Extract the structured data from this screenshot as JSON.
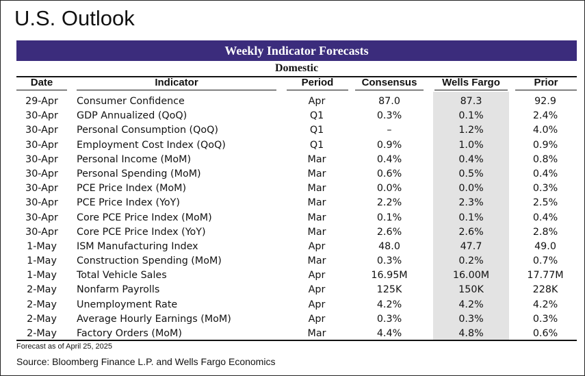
{
  "page_title": "U.S. Outlook",
  "table": {
    "banner": "Weekly Indicator Forecasts",
    "section": "Domestic",
    "headers": {
      "date": "Date",
      "indicator": "Indicator",
      "period": "Period",
      "consensus": "Consensus",
      "wells_fargo": "Wells Fargo",
      "prior": "Prior"
    },
    "rows": [
      {
        "date": "29-Apr",
        "indicator": "Consumer Confidence",
        "period": "Apr",
        "consensus": "87.0",
        "wells_fargo": "87.3",
        "prior": "92.9"
      },
      {
        "date": "30-Apr",
        "indicator": "GDP Annualized (QoQ)",
        "period": "Q1",
        "consensus": "0.3%",
        "wells_fargo": "0.1%",
        "prior": "2.4%"
      },
      {
        "date": "30-Apr",
        "indicator": "Personal Consumption (QoQ)",
        "period": "Q1",
        "consensus": "–",
        "wells_fargo": "1.2%",
        "prior": "4.0%"
      },
      {
        "date": "30-Apr",
        "indicator": "Employment Cost Index (QoQ)",
        "period": "Q1",
        "consensus": "0.9%",
        "wells_fargo": "1.0%",
        "prior": "0.9%"
      },
      {
        "date": "30-Apr",
        "indicator": "Personal Income (MoM)",
        "period": "Mar",
        "consensus": "0.4%",
        "wells_fargo": "0.4%",
        "prior": "0.8%"
      },
      {
        "date": "30-Apr",
        "indicator": "Personal Spending (MoM)",
        "period": "Mar",
        "consensus": "0.6%",
        "wells_fargo": "0.5%",
        "prior": "0.4%"
      },
      {
        "date": "30-Apr",
        "indicator": "PCE Price Index (MoM)",
        "period": "Mar",
        "consensus": "0.0%",
        "wells_fargo": "0.0%",
        "prior": "0.3%"
      },
      {
        "date": "30-Apr",
        "indicator": "PCE Price Index (YoY)",
        "period": "Mar",
        "consensus": "2.2%",
        "wells_fargo": "2.3%",
        "prior": "2.5%"
      },
      {
        "date": "30-Apr",
        "indicator": "Core PCE Price Index (MoM)",
        "period": "Mar",
        "consensus": "0.1%",
        "wells_fargo": "0.1%",
        "prior": "0.4%"
      },
      {
        "date": "30-Apr",
        "indicator": "Core PCE Price Index (YoY)",
        "period": "Mar",
        "consensus": "2.6%",
        "wells_fargo": "2.6%",
        "prior": "2.8%"
      },
      {
        "date": "1-May",
        "indicator": "ISM Manufacturing Index",
        "period": "Apr",
        "consensus": "48.0",
        "wells_fargo": "47.7",
        "prior": "49.0"
      },
      {
        "date": "1-May",
        "indicator": "Construction Spending (MoM)",
        "period": "Mar",
        "consensus": "0.3%",
        "wells_fargo": "0.2%",
        "prior": "0.7%"
      },
      {
        "date": "1-May",
        "indicator": "Total Vehicle Sales",
        "period": "Apr",
        "consensus": "16.95M",
        "wells_fargo": "16.00M",
        "prior": "17.77M"
      },
      {
        "date": "2-May",
        "indicator": "Nonfarm Payrolls",
        "period": "Apr",
        "consensus": "125K",
        "wells_fargo": "150K",
        "prior": "228K"
      },
      {
        "date": "2-May",
        "indicator": "Unemployment Rate",
        "period": "Apr",
        "consensus": "4.2%",
        "wells_fargo": "4.2%",
        "prior": "4.2%"
      },
      {
        "date": "2-May",
        "indicator": "Average Hourly Earnings (MoM)",
        "period": "Apr",
        "consensus": "0.3%",
        "wells_fargo": "0.3%",
        "prior": "0.3%"
      },
      {
        "date": "2-May",
        "indicator": "Factory Orders (MoM)",
        "period": "Mar",
        "consensus": "4.4%",
        "wells_fargo": "4.8%",
        "prior": "0.6%"
      }
    ]
  },
  "footnote": "Forecast as of April 25, 2025",
  "source": "Source: Bloomberg Finance L.P. and Wells Fargo Economics",
  "colors": {
    "banner_bg": "#3b2c7c",
    "wells_fargo_column_bg": "#e3e3e3"
  }
}
